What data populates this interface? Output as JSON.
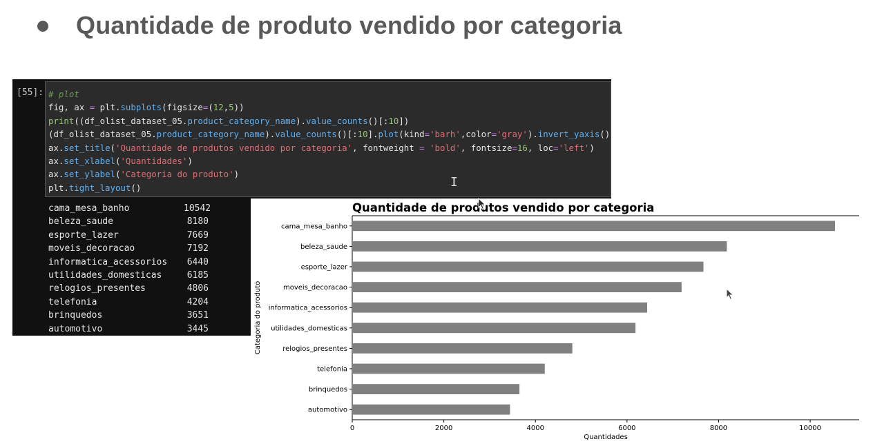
{
  "slide": {
    "heading": "Quantidade de produto vendido por categoria"
  },
  "notebook": {
    "prompt": "[55]:",
    "output_rows": [
      {
        "name": "cama_mesa_banho",
        "value": "10542"
      },
      {
        "name": "beleza_saude",
        "value": "8180"
      },
      {
        "name": "esporte_lazer",
        "value": "7669"
      },
      {
        "name": "moveis_decoracao",
        "value": "7192"
      },
      {
        "name": "informatica_acessorios",
        "value": "6440"
      },
      {
        "name": "utilidades_domesticas",
        "value": "6185"
      },
      {
        "name": "relogios_presentes",
        "value": "4806"
      },
      {
        "name": "telefonia",
        "value": "4204"
      },
      {
        "name": "brinquedos",
        "value": "3651"
      },
      {
        "name": "automotivo",
        "value": "3445"
      }
    ]
  },
  "chart_data": {
    "type": "bar",
    "orientation": "horizontal",
    "title": "Quantidade de produtos vendido por categoria",
    "xlabel": "Quantidades",
    "ylabel": "Categoria do produto",
    "categories": [
      "cama_mesa_banho",
      "beleza_saude",
      "esporte_lazer",
      "moveis_decoracao",
      "informatica_acessorios",
      "utilidades_domesticas",
      "relogios_presentes",
      "telefonia",
      "brinquedos",
      "automotivo"
    ],
    "values": [
      10542,
      8180,
      7669,
      7192,
      6440,
      6185,
      4806,
      4204,
      3651,
      3445
    ],
    "xlim": [
      0,
      11070
    ],
    "xticks": [
      0,
      2000,
      4000,
      6000,
      8000,
      10000
    ],
    "bar_color": "#808080",
    "grid": false
  }
}
